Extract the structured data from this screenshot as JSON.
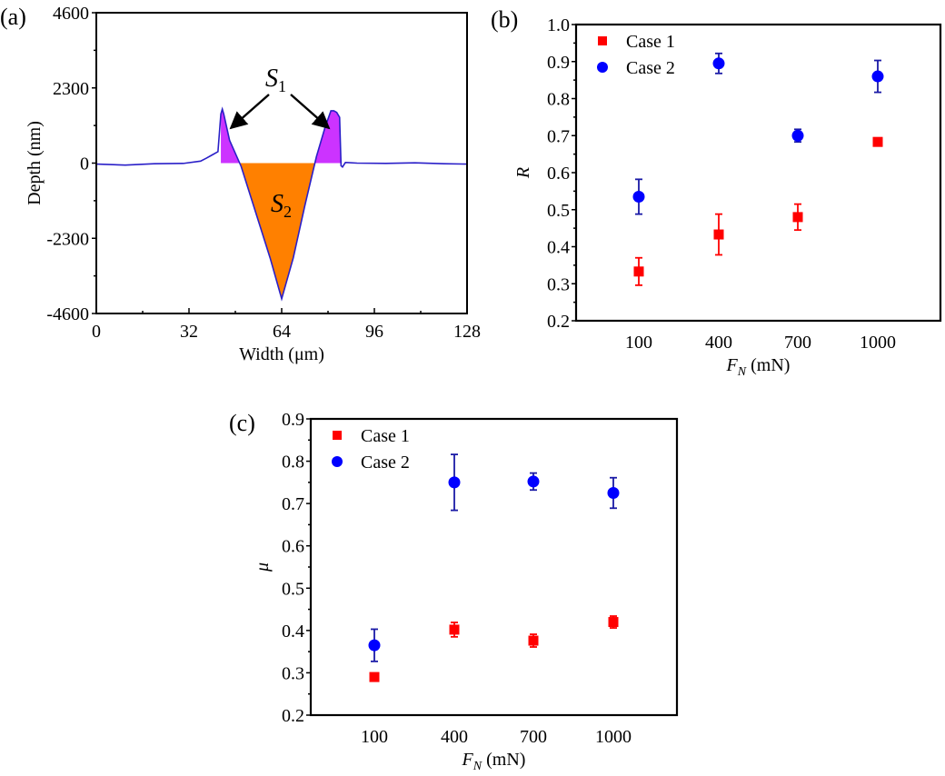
{
  "chart_data": [
    {
      "id": "a",
      "panel_label": "(a)",
      "type": "area",
      "title": "",
      "xlabel": "Width (μm)",
      "ylabel": "Depth (nm)",
      "xlim": [
        0,
        128
      ],
      "ylim": [
        -4600,
        4600
      ],
      "xticks": [
        0,
        32,
        64,
        96,
        128
      ],
      "xtick_labels": [
        "0",
        "32",
        "64",
        "96",
        "128"
      ],
      "yticks": [
        -4600,
        -2300,
        0,
        2300,
        4600
      ],
      "ytick_labels": [
        "-4600",
        "-2300",
        "0",
        "2300",
        "4600"
      ],
      "grid": false,
      "line_color": "#2a1fc8",
      "profile": {
        "x": [
          0,
          10,
          20,
          30,
          36,
          38,
          40,
          42,
          43,
          43.5,
          44,
          45,
          46,
          50,
          55,
          60,
          64,
          68,
          72,
          76,
          79,
          80,
          81,
          82,
          83,
          84,
          84.5,
          85,
          86,
          90,
          100,
          110,
          120,
          128
        ],
        "y": [
          -30,
          -60,
          -20,
          -10,
          60,
          150,
          250,
          350,
          1500,
          1650,
          1500,
          1100,
          700,
          -100,
          -1500,
          -2900,
          -4150,
          -2900,
          -1300,
          200,
          1100,
          1350,
          1600,
          1600,
          1550,
          1400,
          -80,
          -120,
          20,
          0,
          -10,
          10,
          -20,
          -30
        ]
      },
      "regions": [
        {
          "name": "S1",
          "label": "S",
          "subscript": "1",
          "color": "#cc33ff",
          "description": "pile-up area above zero"
        },
        {
          "name": "S2",
          "label": "S",
          "subscript": "2",
          "color": "#ff8000",
          "description": "groove area below zero"
        }
      ],
      "annotations": [
        {
          "text": "S",
          "subscript": "1",
          "x": 62,
          "y": 2300
        },
        {
          "text": "S",
          "subscript": "2",
          "x": 62,
          "y": -1200
        }
      ]
    },
    {
      "id": "b",
      "panel_label": "(b)",
      "type": "scatter",
      "title": "",
      "xlabel": "F",
      "xlabel_subscript": "N",
      "xlabel_unit": " (mN)",
      "ylabel": "R",
      "categories": [
        "100",
        "400",
        "700",
        "1000"
      ],
      "ylim": [
        0.2,
        1.0
      ],
      "yticks": [
        0.2,
        0.3,
        0.4,
        0.5,
        0.6,
        0.7,
        0.8,
        0.9,
        1.0
      ],
      "ytick_labels": [
        "0.2",
        "0.3",
        "0.4",
        "0.5",
        "0.6",
        "0.7",
        "0.8",
        "0.9",
        "1.0"
      ],
      "grid": false,
      "legend_position": "top-left",
      "series": [
        {
          "name": "Case 1",
          "marker": "square",
          "color": "#ff0000",
          "values": [
            0.333,
            0.433,
            0.48,
            0.683
          ],
          "errors": [
            0.037,
            0.055,
            0.035,
            0.005
          ]
        },
        {
          "name": "Case 2",
          "marker": "circle",
          "color": "#0000ff",
          "errors_color": "#1a1aa6",
          "values": [
            0.535,
            0.895,
            0.7,
            0.86
          ],
          "errors": [
            0.047,
            0.027,
            0.017,
            0.043
          ]
        }
      ]
    },
    {
      "id": "c",
      "panel_label": "(c)",
      "type": "scatter",
      "title": "",
      "xlabel": "F",
      "xlabel_subscript": "N",
      "xlabel_unit": " (mN)",
      "ylabel": "μ",
      "categories": [
        "100",
        "400",
        "700",
        "1000"
      ],
      "ylim": [
        0.2,
        0.9
      ],
      "yticks": [
        0.2,
        0.3,
        0.4,
        0.5,
        0.6,
        0.7,
        0.8,
        0.9
      ],
      "ytick_labels": [
        "0.2",
        "0.3",
        "0.4",
        "0.5",
        "0.6",
        "0.7",
        "0.8",
        "0.9"
      ],
      "grid": false,
      "legend_position": "top-left",
      "series": [
        {
          "name": "Case 1",
          "marker": "square",
          "color": "#ff0000",
          "values": [
            0.29,
            0.402,
            0.376,
            0.42
          ],
          "errors": [
            0.005,
            0.017,
            0.015,
            0.014
          ]
        },
        {
          "name": "Case 2",
          "marker": "circle",
          "color": "#0000ff",
          "errors_color": "#1a1aa6",
          "values": [
            0.365,
            0.75,
            0.752,
            0.725
          ],
          "errors": [
            0.038,
            0.066,
            0.02,
            0.036
          ]
        }
      ]
    }
  ]
}
